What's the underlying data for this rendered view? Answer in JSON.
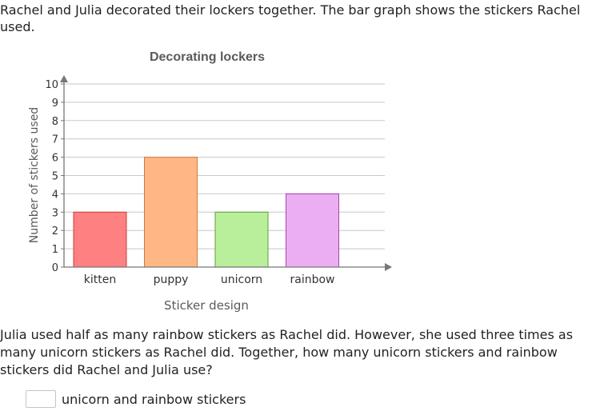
{
  "intro_text": "Rachel and Julia decorated their lockers together. The bar graph shows the stickers Rachel used.",
  "question_text": "Julia used half as many rainbow stickers as Rachel did. However, she used three times as many unicorn stickers as Rachel did. Together, how many unicorn stickers and rainbow stickers did Rachel and Julia use?",
  "answer": {
    "value": "",
    "unit_label": "unicorn and rainbow stickers"
  },
  "chart_data": {
    "type": "bar",
    "title": "Decorating lockers",
    "xlabel": "Sticker design",
    "ylabel": "Number of stickers used",
    "categories": [
      "kitten",
      "puppy",
      "unicorn",
      "rainbow"
    ],
    "values": [
      3,
      6,
      3,
      4
    ],
    "ylim": [
      0,
      10
    ],
    "yticks": [
      "0",
      "1",
      "2",
      "3",
      "4",
      "5",
      "6",
      "7",
      "8",
      "9",
      "10"
    ],
    "grid": true,
    "colors": {
      "fills": [
        "#ff8080",
        "#ffb885",
        "#b9ef9a",
        "#ecaef2"
      ],
      "strokes": [
        "#cc3b3b",
        "#cc7a3a",
        "#5f9e3a",
        "#a246ad"
      ],
      "axis": "#777777",
      "grid": "#c8c8c8",
      "title": "#5a5a5a",
      "text": "#333333"
    }
  }
}
